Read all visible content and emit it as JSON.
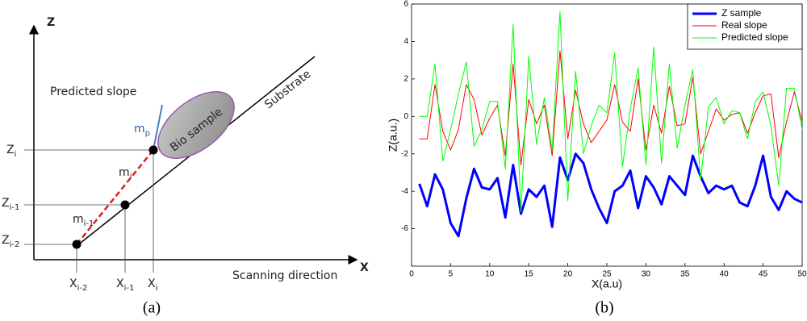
{
  "diagram": {
    "axis_z": "Z",
    "axis_x": "X",
    "predicted_slope": "Predicted slope",
    "substrate": "Substrate",
    "bio_sample": "Bio sample",
    "scanning_direction": "Scanning direction",
    "labels": [
      {
        "main": "m",
        "sub": "p"
      },
      {
        "main": "m",
        "sub": "i"
      },
      {
        "main": "m",
        "sub": "i-1"
      },
      {
        "main": "Z",
        "sub": "i"
      },
      {
        "main": "Z",
        "sub": "i-1"
      },
      {
        "main": "Z",
        "sub": "i-2"
      },
      {
        "main": "X",
        "sub": "i-2"
      },
      {
        "main": "X",
        "sub": "i-1"
      },
      {
        "main": "X",
        "sub": "i"
      }
    ],
    "caption": "(a)"
  },
  "caption_b": "(b)",
  "chart_data": {
    "type": "line",
    "xlabel": "X(a.u)",
    "ylabel": "Z(a.u.)",
    "x": [
      1,
      2,
      3,
      4,
      5,
      6,
      7,
      8,
      9,
      10,
      11,
      12,
      13,
      14,
      15,
      16,
      17,
      18,
      19,
      20,
      21,
      22,
      23,
      24,
      25,
      26,
      27,
      28,
      29,
      30,
      31,
      32,
      33,
      34,
      35,
      36,
      37,
      38,
      39,
      40,
      41,
      42,
      43,
      44,
      45,
      46,
      47,
      48,
      49,
      50
    ],
    "xlim": [
      0,
      50
    ],
    "xticks": [
      0,
      5,
      10,
      15,
      20,
      25,
      30,
      35,
      40,
      45,
      50
    ],
    "ylim": [
      -8,
      6
    ],
    "yticks": [
      -6,
      -4,
      -2,
      0,
      2,
      4,
      6
    ],
    "legend": "upper right",
    "series": [
      {
        "name": "Z sample",
        "color": "#0000ff",
        "width": 3,
        "values": [
          -3.6,
          -4.8,
          -3.1,
          -3.9,
          -5.7,
          -6.4,
          -4.4,
          -2.8,
          -3.8,
          -3.9,
          -3.3,
          -5.4,
          -2.6,
          -5.2,
          -3.9,
          -4.3,
          -3.7,
          -5.9,
          -2.2,
          -3.4,
          -2.0,
          -2.5,
          -3.9,
          -4.9,
          -5.7,
          -4.0,
          -3.7,
          -2.9,
          -4.9,
          -3.2,
          -3.8,
          -4.7,
          -3.2,
          -3.7,
          -4.2,
          -2.1,
          -3.2,
          -4.1,
          -3.7,
          -3.9,
          -3.7,
          -4.6,
          -4.8,
          -3.7,
          -2.1,
          -4.3,
          -5.0,
          -4.0,
          -4.4,
          -4.6
        ]
      },
      {
        "name": "Real slope",
        "color": "#ff0000",
        "width": 1,
        "values": [
          -1.2,
          -1.2,
          1.7,
          -0.8,
          -1.8,
          -0.7,
          1.7,
          0.9,
          -1.0,
          -0.1,
          0.6,
          -2.1,
          2.8,
          -2.6,
          0.9,
          -0.4,
          0.6,
          -2.1,
          3.5,
          -1.2,
          1.4,
          -0.4,
          -1.4,
          -0.8,
          -0.2,
          1.7,
          -0.3,
          -0.8,
          2.0,
          -1.8,
          0.6,
          -0.9,
          1.6,
          -0.5,
          -0.4,
          2.1,
          -2.0,
          -0.8,
          0.4,
          -0.2,
          0.1,
          0.2,
          -0.9,
          0.2,
          1.1,
          1.2,
          -2.2,
          -0.3,
          1.3,
          -0.3
        ]
      },
      {
        "name": "Predicted slope",
        "color": "#00ff00",
        "width": 1,
        "values": [
          0,
          0,
          2.8,
          -2.4,
          -0.7,
          1.2,
          2.9,
          -1.6,
          -0.7,
          0.8,
          0.8,
          -2.8,
          4.9,
          -5.1,
          3.2,
          -1.5,
          1.0,
          -1.8,
          5.6,
          -4.5,
          2.4,
          -2.0,
          -0.5,
          0.6,
          0.2,
          3.4,
          -2.7,
          0.4,
          2.6,
          -2.6,
          3.7,
          -2.5,
          2.8,
          -1.7,
          0.6,
          2.5,
          -3.4,
          0.5,
          1.0,
          -0.4,
          0.3,
          0.2,
          -1.2,
          0.8,
          1.3,
          -0.5,
          -3.7,
          1.5,
          1.5,
          -0.7
        ]
      }
    ]
  }
}
